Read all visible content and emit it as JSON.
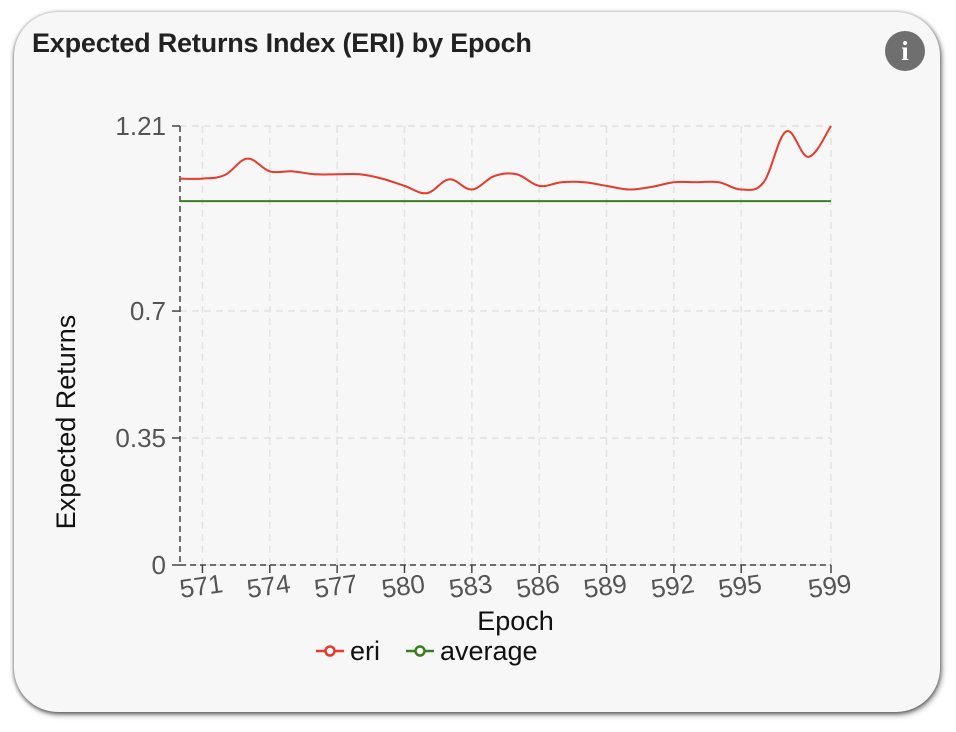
{
  "card": {
    "title": "Expected Returns Index (ERI) by Epoch",
    "info_icon": "info-icon",
    "info_glyph": "i"
  },
  "chart_data": {
    "type": "line",
    "title": "Expected Returns Index (ERI) by Epoch",
    "xlabel": "Epoch",
    "ylabel": "Expected Returns",
    "xlim": [
      570,
      599
    ],
    "ylim": [
      0,
      1.21
    ],
    "xticks": [
      571,
      574,
      577,
      580,
      583,
      586,
      589,
      592,
      595,
      599
    ],
    "yticks": [
      0,
      0.35,
      0.7,
      1.21
    ],
    "ytick_labels": [
      "0",
      "0.35",
      "0.7",
      "1.21"
    ],
    "grid": true,
    "legend_position": "bottom",
    "x": [
      570,
      571,
      572,
      573,
      574,
      575,
      576,
      577,
      578,
      579,
      580,
      581,
      582,
      583,
      584,
      585,
      586,
      587,
      588,
      589,
      590,
      591,
      592,
      593,
      594,
      595,
      596,
      597,
      598,
      599
    ],
    "series": [
      {
        "name": "eri",
        "color": "#e8392b",
        "values": [
          1.065,
          1.065,
          1.075,
          1.12,
          1.085,
          1.085,
          1.077,
          1.077,
          1.077,
          1.065,
          1.045,
          1.025,
          1.063,
          1.035,
          1.072,
          1.077,
          1.045,
          1.055,
          1.055,
          1.045,
          1.035,
          1.042,
          1.055,
          1.055,
          1.055,
          1.035,
          1.055,
          1.195,
          1.125,
          1.21
        ]
      },
      {
        "name": "average",
        "color": "#3a7d23",
        "values": [
          1.003,
          1.003,
          1.003,
          1.003,
          1.003,
          1.003,
          1.003,
          1.003,
          1.003,
          1.003,
          1.003,
          1.003,
          1.003,
          1.003,
          1.003,
          1.003,
          1.003,
          1.003,
          1.003,
          1.003,
          1.003,
          1.003,
          1.003,
          1.003,
          1.003,
          1.003,
          1.003,
          1.003,
          1.003,
          1.003
        ]
      }
    ]
  }
}
